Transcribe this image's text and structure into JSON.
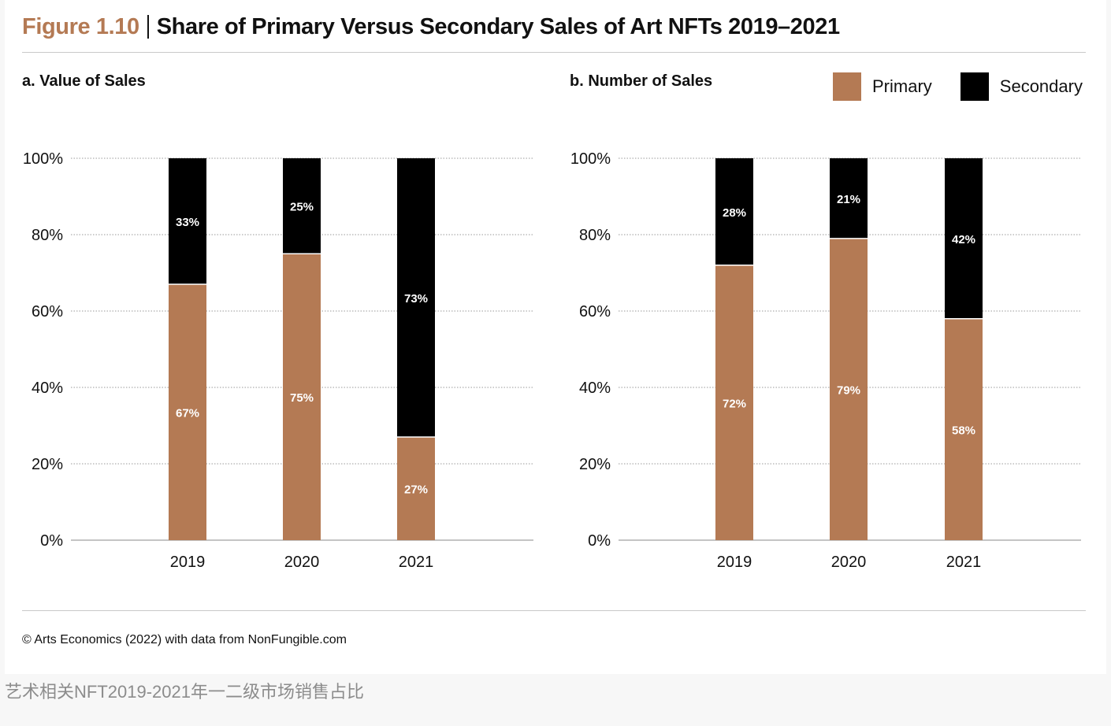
{
  "figure": {
    "label": "Figure 1.10",
    "title": "Share of Primary Versus Secondary Sales of Art NFTs 2019–2021"
  },
  "legend": {
    "items": [
      {
        "label": "Primary",
        "color": "#b47a54"
      },
      {
        "label": "Secondary",
        "color": "#000000"
      }
    ]
  },
  "source": "© Arts Economics (2022) with data from NonFungible.com",
  "caption": "艺术相关NFT2019-2021年一二级市场销售占比",
  "chart_data": [
    {
      "type": "bar",
      "stacked": true,
      "title": "a. Value of Sales",
      "categories": [
        "2019",
        "2020",
        "2021"
      ],
      "series": [
        {
          "name": "Primary",
          "color": "#b47a54",
          "values": [
            67,
            75,
            27
          ],
          "labels": [
            "67%",
            "75%",
            "27%"
          ]
        },
        {
          "name": "Secondary",
          "color": "#000000",
          "values": [
            33,
            25,
            73
          ],
          "labels": [
            "33%",
            "25%",
            "73%"
          ]
        }
      ],
      "ylim": [
        0,
        100
      ],
      "yticks": [
        "0%",
        "20%",
        "40%",
        "60%",
        "80%",
        "100%"
      ],
      "xlabel": "",
      "ylabel": "",
      "grid": true
    },
    {
      "type": "bar",
      "stacked": true,
      "title": "b. Number of Sales",
      "categories": [
        "2019",
        "2020",
        "2021"
      ],
      "series": [
        {
          "name": "Primary",
          "color": "#b47a54",
          "values": [
            72,
            79,
            58
          ],
          "labels": [
            "72%",
            "79%",
            "58%"
          ]
        },
        {
          "name": "Secondary",
          "color": "#000000",
          "values": [
            28,
            21,
            42
          ],
          "labels": [
            "28%",
            "21%",
            "42%"
          ]
        }
      ],
      "ylim": [
        0,
        100
      ],
      "yticks": [
        "0%",
        "20%",
        "40%",
        "60%",
        "80%",
        "100%"
      ],
      "xlabel": "",
      "ylabel": "",
      "grid": true
    }
  ]
}
